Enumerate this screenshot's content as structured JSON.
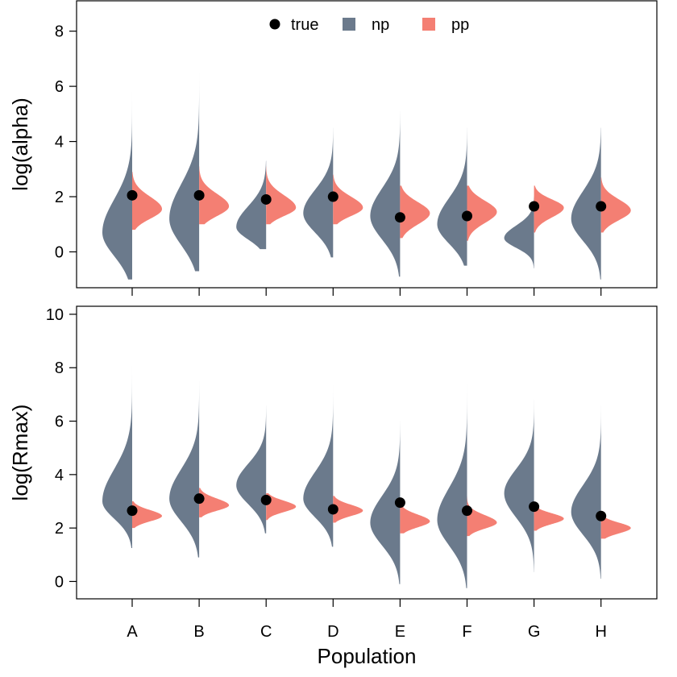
{
  "chart_data": {
    "type": "violin",
    "xlabel": "Population",
    "categories": [
      "A",
      "B",
      "C",
      "D",
      "E",
      "F",
      "G",
      "H"
    ],
    "legend": {
      "position": "top-center",
      "items": [
        {
          "label": "true",
          "symbol": "point",
          "color": "#000000"
        },
        {
          "label": "np",
          "symbol": "box",
          "color": "#6b7a8c"
        },
        {
          "label": "pp",
          "symbol": "box",
          "color": "#f47f73"
        }
      ]
    },
    "panels": [
      {
        "ylabel": "log(alpha)",
        "ylim": [
          -1.3,
          9.1
        ],
        "yticks": [
          "0",
          "2",
          "4",
          "6",
          "8"
        ],
        "grid": false,
        "np": [
          {
            "min": -1.0,
            "max": 5.9,
            "mode": 0.7,
            "sd_low": 0.85,
            "sd_high": 1.2
          },
          {
            "min": -0.7,
            "max": 6.6,
            "mode": 1.2,
            "sd_low": 0.95,
            "sd_high": 1.25
          },
          {
            "min": 0.1,
            "max": 3.3,
            "mode": 0.9,
            "sd_low": 0.45,
            "sd_high": 0.75
          },
          {
            "min": -0.2,
            "max": 4.5,
            "mode": 1.4,
            "sd_low": 0.7,
            "sd_high": 0.85
          },
          {
            "min": -0.9,
            "max": 5.1,
            "mode": 1.3,
            "sd_low": 0.85,
            "sd_high": 1.0
          },
          {
            "min": -0.5,
            "max": 4.5,
            "mode": 1.0,
            "sd_low": 0.7,
            "sd_high": 0.95
          },
          {
            "min": -0.6,
            "max": 2.3,
            "mode": 0.5,
            "sd_low": 0.35,
            "sd_high": 0.45
          },
          {
            "min": -1.0,
            "max": 4.5,
            "mode": 1.2,
            "sd_low": 0.8,
            "sd_high": 1.0
          }
        ],
        "pp": [
          {
            "min": 0.8,
            "max": 2.9,
            "mode": 1.55,
            "sd_low": 0.35,
            "sd_high": 0.45
          },
          {
            "min": 1.0,
            "max": 3.1,
            "mode": 1.65,
            "sd_low": 0.35,
            "sd_high": 0.45
          },
          {
            "min": 1.0,
            "max": 3.1,
            "mode": 1.6,
            "sd_low": 0.3,
            "sd_high": 0.45
          },
          {
            "min": 1.0,
            "max": 2.8,
            "mode": 1.6,
            "sd_low": 0.3,
            "sd_high": 0.4
          },
          {
            "min": 0.5,
            "max": 2.4,
            "mode": 1.4,
            "sd_low": 0.4,
            "sd_high": 0.4
          },
          {
            "min": 0.4,
            "max": 2.4,
            "mode": 1.45,
            "sd_low": 0.4,
            "sd_high": 0.4
          },
          {
            "min": 0.7,
            "max": 2.4,
            "mode": 1.6,
            "sd_low": 0.35,
            "sd_high": 0.3
          },
          {
            "min": 0.7,
            "max": 2.7,
            "mode": 1.5,
            "sd_low": 0.35,
            "sd_high": 0.4
          }
        ],
        "true": [
          2.05,
          2.05,
          1.9,
          2.0,
          1.25,
          1.3,
          1.65,
          1.65
        ]
      },
      {
        "ylabel": "log(Rmax)",
        "ylim": [
          -0.65,
          10.3
        ],
        "yticks": [
          "0",
          "2",
          "4",
          "6",
          "8",
          "10"
        ],
        "grid": false,
        "np": [
          {
            "min": 1.25,
            "max": 8.4,
            "mode": 3.0,
            "sd_low": 0.65,
            "sd_high": 1.2
          },
          {
            "min": 0.9,
            "max": 7.5,
            "mode": 3.1,
            "sd_low": 0.85,
            "sd_high": 1.1
          },
          {
            "min": 1.8,
            "max": 6.6,
            "mode": 3.6,
            "sd_low": 0.7,
            "sd_high": 0.8
          },
          {
            "min": 1.3,
            "max": 7.5,
            "mode": 3.1,
            "sd_low": 0.7,
            "sd_high": 1.0
          },
          {
            "min": -0.1,
            "max": 6.0,
            "mode": 2.2,
            "sd_low": 0.85,
            "sd_high": 1.0
          },
          {
            "min": -0.25,
            "max": 7.6,
            "mode": 2.3,
            "sd_low": 0.95,
            "sd_high": 1.2
          },
          {
            "min": 0.35,
            "max": 6.8,
            "mode": 3.3,
            "sd_low": 0.9,
            "sd_high": 0.9
          },
          {
            "min": 0.1,
            "max": 6.6,
            "mode": 2.6,
            "sd_low": 0.85,
            "sd_high": 1.0
          }
        ],
        "pp": [
          {
            "min": 2.0,
            "max": 3.0,
            "mode": 2.45,
            "sd_low": 0.2,
            "sd_high": 0.22
          },
          {
            "min": 2.4,
            "max": 3.5,
            "mode": 2.85,
            "sd_low": 0.2,
            "sd_high": 0.25
          },
          {
            "min": 2.3,
            "max": 3.3,
            "mode": 2.8,
            "sd_low": 0.2,
            "sd_high": 0.22
          },
          {
            "min": 2.2,
            "max": 3.2,
            "mode": 2.65,
            "sd_low": 0.2,
            "sd_high": 0.22
          },
          {
            "min": 1.8,
            "max": 2.9,
            "mode": 2.25,
            "sd_low": 0.22,
            "sd_high": 0.25
          },
          {
            "min": 1.7,
            "max": 3.2,
            "mode": 2.2,
            "sd_low": 0.22,
            "sd_high": 0.28
          },
          {
            "min": 1.9,
            "max": 2.8,
            "mode": 2.35,
            "sd_low": 0.2,
            "sd_high": 0.2
          },
          {
            "min": 1.6,
            "max": 2.5,
            "mode": 2.0,
            "sd_low": 0.2,
            "sd_high": 0.2
          }
        ],
        "true": [
          2.65,
          3.1,
          3.05,
          2.7,
          2.95,
          2.65,
          2.8,
          2.45
        ]
      }
    ]
  }
}
